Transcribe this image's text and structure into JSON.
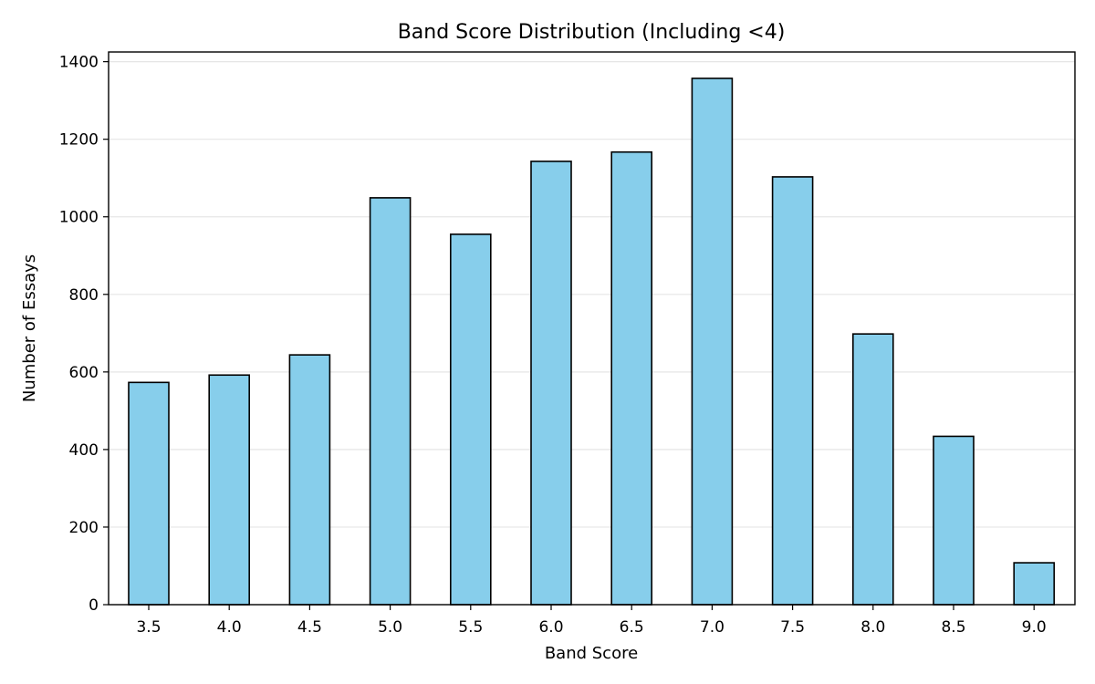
{
  "chart_data": {
    "type": "bar",
    "title": "Band Score Distribution (Including <4)",
    "xlabel": "Band Score",
    "ylabel": "Number of Essays",
    "categories": [
      "3.5",
      "4.0",
      "4.5",
      "5.0",
      "5.5",
      "6.0",
      "6.5",
      "7.0",
      "7.5",
      "8.0",
      "8.5",
      "9.0"
    ],
    "values": [
      573,
      592,
      644,
      1049,
      955,
      1143,
      1167,
      1357,
      1103,
      698,
      434,
      108
    ],
    "ylim": [
      0,
      1425
    ],
    "yticks": [
      0,
      200,
      400,
      600,
      800,
      1000,
      1200,
      1400
    ],
    "ytick_labels": [
      "0",
      "200",
      "400",
      "600",
      "800",
      "1000",
      "1200",
      "1400"
    ],
    "grid": "y",
    "colors": {
      "bar_fill": "#87CEEB",
      "bar_edge": "#000000",
      "grid": "#e6e6e6"
    }
  }
}
